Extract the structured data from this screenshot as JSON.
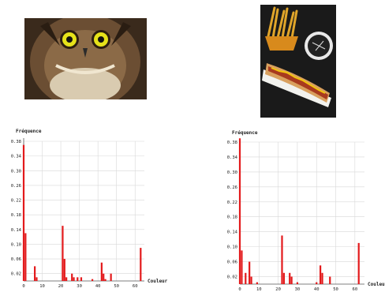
{
  "chart_data": [
    {
      "type": "bar",
      "xlabel": "Couleur",
      "ylabel": "Fréquence",
      "xlim": [
        0,
        65
      ],
      "ylim": [
        0,
        0.38
      ],
      "xticks": [
        0,
        10,
        20,
        30,
        40,
        50,
        60
      ],
      "yticks": [
        0.02,
        0.06,
        0.1,
        0.14,
        0.18,
        0.22,
        0.26,
        0.3,
        0.34,
        0.38
      ],
      "ytick_labels": [
        "0.02",
        "0.06",
        "0.10",
        "0.14",
        "0.18",
        "0.22",
        "0.26",
        "0.30",
        "0.34",
        "0.38"
      ],
      "grid": true,
      "bar_color": "#e31a1c",
      "x": [
        0,
        1,
        6,
        7,
        21,
        22,
        23,
        26,
        27,
        29,
        31,
        37,
        42,
        43,
        44,
        47,
        63
      ],
      "values": [
        0.37,
        0.13,
        0.04,
        0.01,
        0.15,
        0.06,
        0.01,
        0.02,
        0.01,
        0.01,
        0.01,
        0.005,
        0.05,
        0.02,
        0.005,
        0.02,
        0.09
      ]
    },
    {
      "type": "bar",
      "xlabel": "Couleur",
      "ylabel": "Fréquence",
      "xlim": [
        0,
        65
      ],
      "ylim": [
        0,
        0.38
      ],
      "xticks": [
        0,
        10,
        20,
        30,
        40,
        50,
        60
      ],
      "yticks": [
        0.02,
        0.06,
        0.1,
        0.14,
        0.18,
        0.22,
        0.26,
        0.3,
        0.34,
        0.38
      ],
      "ytick_labels": [
        "0.02",
        "0.06",
        "0.10",
        "0.14",
        "0.18",
        "0.22",
        "0.26",
        "0.30",
        "0.34",
        "0.38"
      ],
      "grid": true,
      "bar_color": "#e31a1c",
      "x": [
        0,
        1,
        3,
        5,
        6,
        9,
        22,
        23,
        26,
        27,
        30,
        40,
        42,
        43,
        47,
        62
      ],
      "values": [
        0.39,
        0.09,
        0.03,
        0.06,
        0.02,
        0.005,
        0.13,
        0.03,
        0.03,
        0.02,
        0.005,
        0.005,
        0.05,
        0.03,
        0.02,
        0.11
      ]
    }
  ]
}
